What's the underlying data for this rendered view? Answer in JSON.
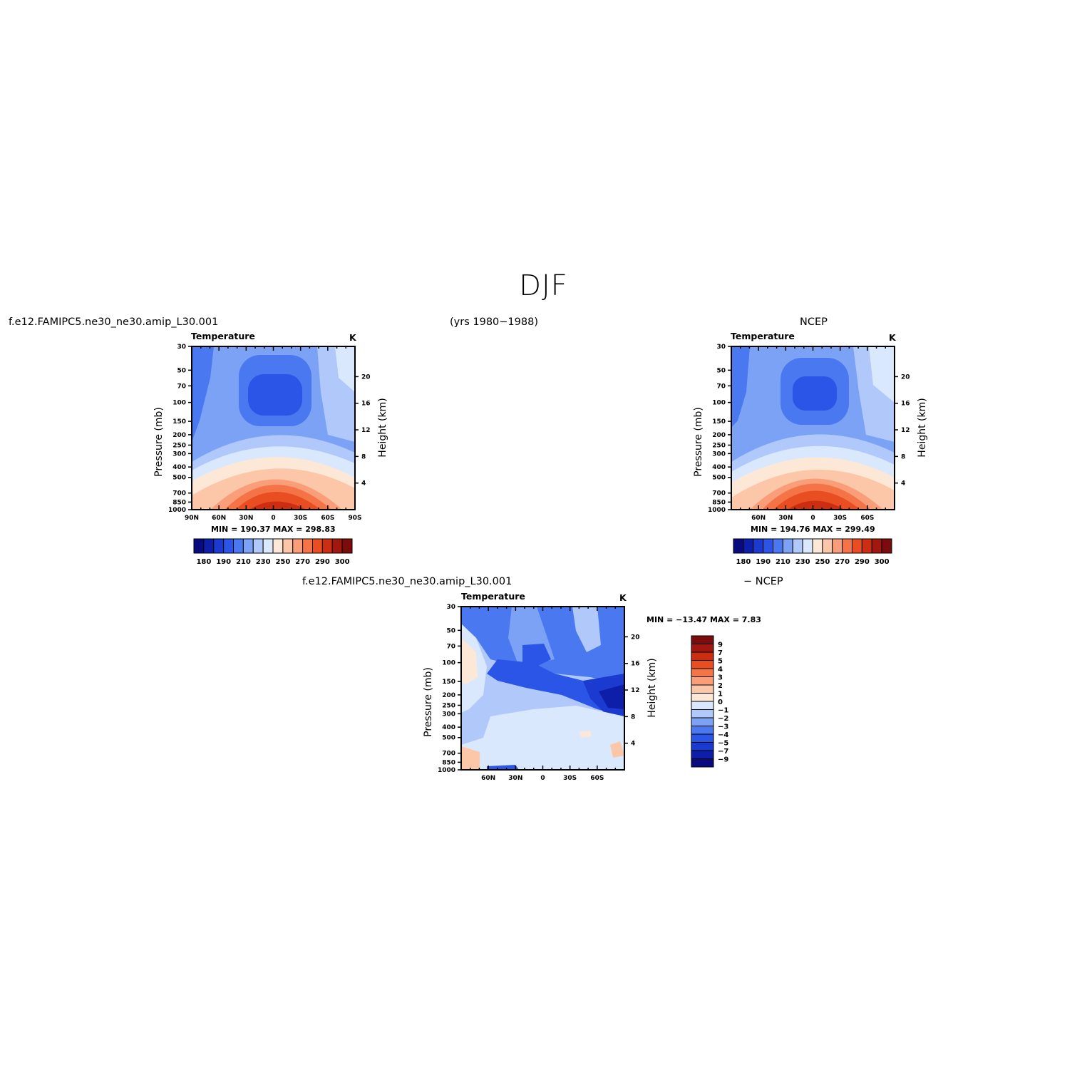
{
  "figure": {
    "title": "DJF",
    "case_name": "f.e12.FAMIPC5.ne30_ne30.amip_L30.001",
    "years": "(yrs 1980−1988)",
    "obs_name": "NCEP",
    "diff_case": "f.e12.FAMIPC5.ne30_ne30.amip_L30.001",
    "diff_obs": "− NCEP"
  },
  "panels": {
    "model": {
      "variable": "Temperature",
      "units": "K",
      "min_max": "MIN = 190.37   MAX = 298.83"
    },
    "obs": {
      "variable": "Temperature",
      "units": "K",
      "min_max": "MIN = 194.76   MAX = 299.49"
    },
    "diff": {
      "variable": "Temperature",
      "units": "K",
      "min_max": "MIN = −13.47   MAX =    7.83"
    }
  },
  "colors": {
    "abs_levels": [
      "#0a0a80",
      "#0d1fa8",
      "#1a3ad0",
      "#2b55e6",
      "#4a78f0",
      "#7ca2f6",
      "#b0c8fa",
      "#dae8fd",
      "#fde8d8",
      "#fcc7a8",
      "#fa9e7a",
      "#f47448",
      "#e84e22",
      "#cc2e12",
      "#a01810",
      "#7c0c0c"
    ],
    "diff_levels": [
      "#0a0a80",
      "#0d1fa8",
      "#1a3ad0",
      "#2b55e6",
      "#4a78f0",
      "#7ca2f6",
      "#b0c8fa",
      "#dae8fd",
      "#fde8d8",
      "#fcc7a8",
      "#fa9e7a",
      "#f47448",
      "#e84e22",
      "#cc2e12",
      "#a01810",
      "#7c0c0c"
    ]
  },
  "chart_data": [
    {
      "type": "heatmap",
      "name": "model",
      "title": "Temperature",
      "units": "K",
      "xlabel": "",
      "ylabel": "Pressure (mb)",
      "y2label": "Height (km)",
      "x_ticks": [
        "90N",
        "60N",
        "30N",
        "0",
        "30S",
        "60S",
        "90S"
      ],
      "x_tick_values": [
        90,
        60,
        30,
        0,
        -30,
        -60,
        -90
      ],
      "y_ticks": [
        30,
        50,
        70,
        100,
        150,
        200,
        250,
        300,
        400,
        500,
        700,
        850,
        1000
      ],
      "y2_ticks": [
        20,
        16,
        12,
        8,
        4
      ],
      "min": 190.37,
      "max": 298.83,
      "colorbar_labels": [
        "180",
        "190",
        "210",
        "230",
        "250",
        "270",
        "290",
        "300"
      ],
      "colorbar_levels": [
        175,
        180,
        185,
        190,
        200,
        210,
        220,
        230,
        240,
        250,
        260,
        270,
        280,
        290,
        295,
        300
      ]
    },
    {
      "type": "heatmap",
      "name": "obs",
      "title": "Temperature",
      "units": "K",
      "xlabel": "",
      "ylabel": "Pressure (mb)",
      "y2label": "Height (km)",
      "x_ticks": [
        "60N",
        "30N",
        "0",
        "30S",
        "60S"
      ],
      "x_tick_values": [
        60,
        30,
        0,
        -30,
        -60
      ],
      "y_ticks": [
        30,
        50,
        70,
        100,
        150,
        200,
        250,
        300,
        400,
        500,
        700,
        850,
        1000
      ],
      "y2_ticks": [
        20,
        16,
        12,
        8,
        4
      ],
      "min": 194.76,
      "max": 299.49,
      "colorbar_labels": [
        "180",
        "190",
        "210",
        "230",
        "250",
        "270",
        "290",
        "300"
      ],
      "colorbar_levels": [
        175,
        180,
        185,
        190,
        200,
        210,
        220,
        230,
        240,
        250,
        260,
        270,
        280,
        290,
        295,
        300
      ]
    },
    {
      "type": "heatmap",
      "name": "diff",
      "title": "Temperature",
      "units": "K",
      "xlabel": "",
      "ylabel": "Pressure (mb)",
      "y2label": "Height (km)",
      "x_ticks": [
        "60N",
        "30N",
        "0",
        "30S",
        "60S"
      ],
      "x_tick_values": [
        60,
        30,
        0,
        -30,
        -60
      ],
      "y_ticks": [
        30,
        50,
        70,
        100,
        150,
        200,
        250,
        300,
        400,
        500,
        700,
        850,
        1000
      ],
      "y2_ticks": [
        20,
        16,
        12,
        8,
        4
      ],
      "min": -13.47,
      "max": 7.83,
      "colorbar_labels": [
        "9",
        "7",
        "5",
        "4",
        "3",
        "2",
        "1",
        "0",
        "−1",
        "−2",
        "−3",
        "−4",
        "−5",
        "−7",
        "−9"
      ],
      "colorbar_levels": [
        -9,
        -7,
        -5,
        -4,
        -3,
        -2,
        -1,
        0,
        1,
        2,
        3,
        4,
        5,
        7,
        9
      ]
    }
  ]
}
